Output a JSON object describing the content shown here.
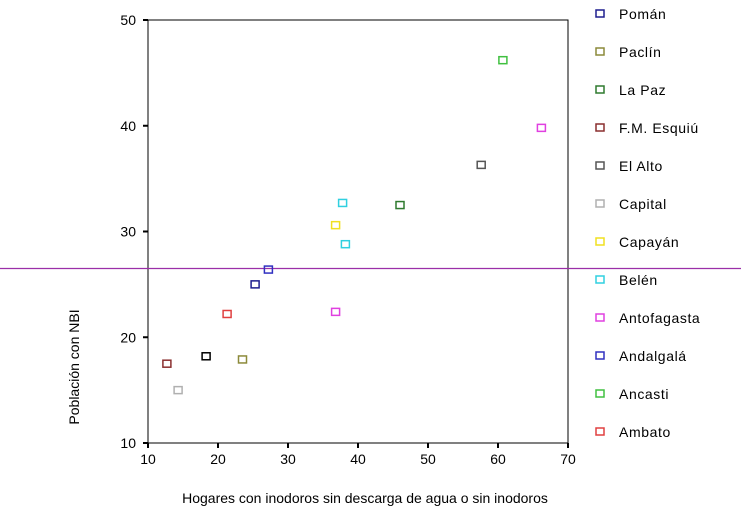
{
  "chart_data": {
    "type": "scatter",
    "title": "",
    "xlabel": "Hogares con inodoros sin descarga de agua o sin inodoros",
    "ylabel": "Población con NBI",
    "xlim": [
      10,
      70
    ],
    "ylim": [
      10,
      50
    ],
    "xticks": [
      10,
      20,
      30,
      40,
      50,
      60,
      70
    ],
    "yticks": [
      10,
      20,
      30,
      40,
      50
    ],
    "grid": false,
    "legend_position": "right",
    "reference_line": {
      "axis": "y",
      "value": 26.5,
      "color": "#9b2fa8"
    },
    "series": [
      {
        "name": "Pomán",
        "color": "#1f1f8f",
        "points": [
          [
            25.3,
            25.0
          ]
        ]
      },
      {
        "name": "Paclín",
        "color": "#8c8a3a",
        "points": [
          [
            23.5,
            17.9
          ]
        ]
      },
      {
        "name": "La Paz",
        "color": "#2f7a2f",
        "points": [
          [
            46.0,
            32.5
          ]
        ]
      },
      {
        "name": "F.M. Esquiú",
        "color": "#8a2f2f",
        "points": [
          [
            12.7,
            17.5
          ]
        ]
      },
      {
        "name": "El Alto",
        "color": "#555555",
        "points": [
          [
            57.6,
            36.3
          ]
        ]
      },
      {
        "name": "Capital",
        "color": "#b0b0b0",
        "points": [
          [
            14.3,
            15.0
          ]
        ]
      },
      {
        "name": "Capayán",
        "color": "#f0e020",
        "points": [
          [
            36.8,
            30.6
          ]
        ]
      },
      {
        "name": "Belén",
        "color": "#30d0e0",
        "points": [
          [
            38.2,
            28.8
          ],
          [
            37.8,
            32.7
          ]
        ]
      },
      {
        "name": "Antofagasta",
        "color": "#e040e0",
        "points": [
          [
            66.2,
            39.8
          ],
          [
            36.8,
            22.4
          ]
        ]
      },
      {
        "name": "Andalgalá",
        "color": "#3030c0",
        "points": [
          [
            27.2,
            26.4
          ]
        ]
      },
      {
        "name": "Ancasti",
        "color": "#40c040",
        "points": [
          [
            60.7,
            46.2
          ]
        ]
      },
      {
        "name": "Ambato",
        "color": "#e04040",
        "points": [
          [
            21.3,
            22.2
          ]
        ]
      },
      {
        "name": "",
        "color": "#000000",
        "points": [
          [
            18.3,
            18.2
          ]
        ]
      }
    ]
  }
}
